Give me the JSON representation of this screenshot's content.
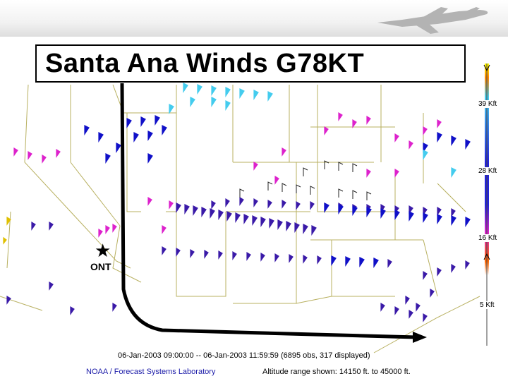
{
  "title": "Santa Ana Winds G78KT",
  "station_label": "ONT",
  "altitude_levels": [
    "39 Kft",
    "28 Kft",
    "16 Kft",
    "5 Kft"
  ],
  "time_range": "06-Jan-2003 09:00:00 -- 06-Jan-2003 11:59:59 (6895 obs, 317 displayed)",
  "org": "NOAA / Forecast Systems Laboratory",
  "altitude_range": "Altitude range shown: 14150 ft. to 45000 ft.",
  "colors": {
    "path": "#000000",
    "border": "#b8b060",
    "low": "#ffff00",
    "mid_low": "#ff00ff",
    "mid": "#2222dd",
    "high": "#44ccee"
  },
  "icons": [
    "airplane-icon",
    "star-icon",
    "wind-barb-icon"
  ]
}
